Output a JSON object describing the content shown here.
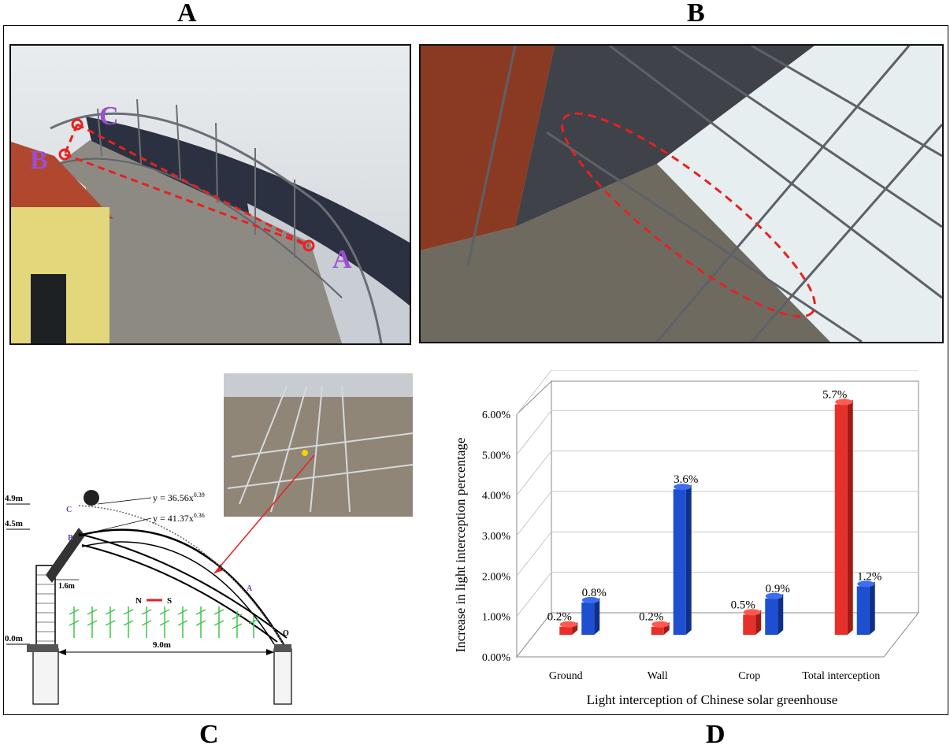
{
  "panel_labels": {
    "a": "A",
    "b": "B",
    "c": "C",
    "d": "D"
  },
  "photo_a": {
    "points": {
      "a": "A",
      "b": "B",
      "c": "C"
    },
    "colors": {
      "marker": "#e52222",
      "label": "#9b4fd0"
    }
  },
  "diagram_c": {
    "heights": {
      "h1": "4.9m",
      "h2": "4.5m",
      "h3": "0.0m"
    },
    "eq1": "y = 36.56x",
    "eq1_exp": "0.39",
    "eq2": "y = 41.37x",
    "eq2_exp": "0.36",
    "points": {
      "c": "C",
      "b": "B",
      "a": "A",
      "o": "O"
    },
    "span": "9.0m",
    "wall_width": "1.6m",
    "dir_n": "N",
    "dir_s": "S"
  },
  "chart_data": {
    "type": "bar",
    "categories": [
      "Ground",
      "Wall",
      "Crop",
      "Total interception"
    ],
    "series": [
      {
        "values": [
          0.2,
          0.2,
          0.5,
          5.7
        ],
        "labels": [
          "0.2%",
          "0.2%",
          "0.5%",
          "5.7%"
        ],
        "color": "#e8302a"
      },
      {
        "values": [
          0.8,
          3.6,
          0.9,
          1.2
        ],
        "labels": [
          "0.8%",
          "3.6%",
          "0.9%",
          "1.2%"
        ],
        "color": "#1f4fd1"
      }
    ],
    "xlabel": "Light interception of Chinese solar greenhouse",
    "ylabel": "Increase in light interception percentage",
    "ylim": [
      0,
      6
    ],
    "yticks": [
      "0.00%",
      "1.00%",
      "2.00%",
      "3.00%",
      "4.00%",
      "5.00%",
      "6.00%"
    ],
    "grid": true
  }
}
